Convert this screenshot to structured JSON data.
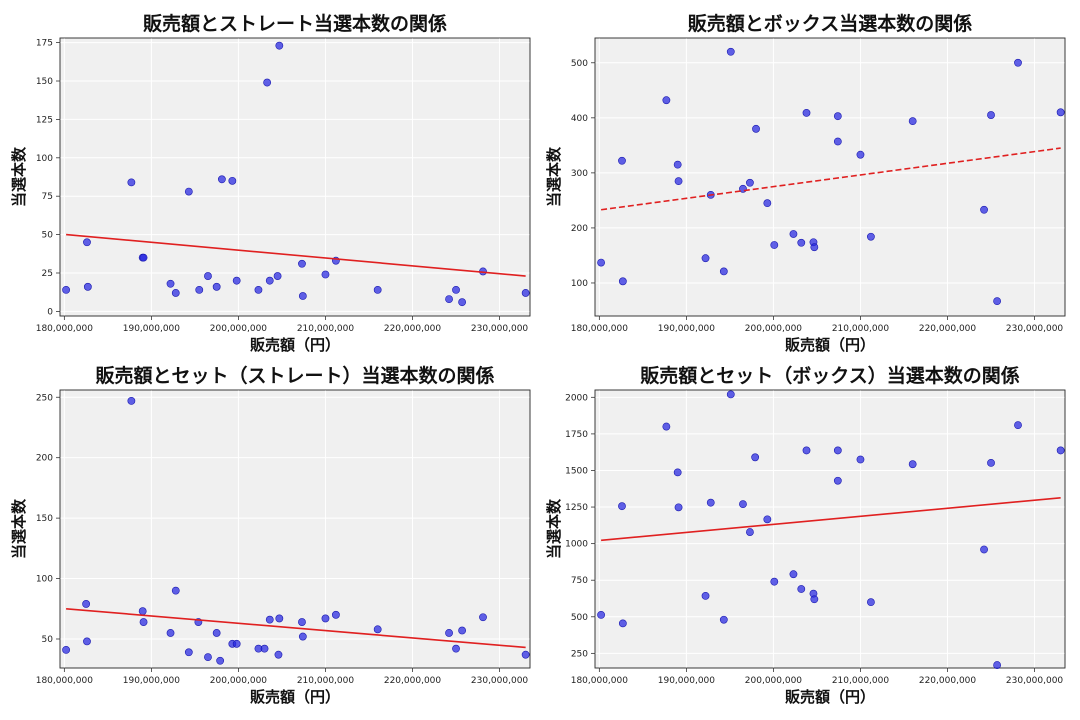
{
  "x_tick_labels": [
    "180,000,000",
    "190,000,000",
    "200,000,000",
    "210,000,000",
    "220,000,000",
    "230,000,000"
  ],
  "chart_data": [
    {
      "type": "scatter",
      "title": "販売額とストレート当選本数の関係",
      "xlabel": "販売額（円）",
      "ylabel": "当選本数",
      "xlim": [
        179500000,
        233500000
      ],
      "ylim": [
        -3,
        178
      ],
      "yticks": [
        0,
        25,
        50,
        75,
        100,
        125,
        150,
        175
      ],
      "ytick_labels": [
        "0",
        "25",
        "50",
        "75",
        "100",
        "125",
        "150",
        "175"
      ],
      "grid": true,
      "trend": {
        "x": [
          180200000,
          233000000
        ],
        "y": [
          50,
          23
        ]
      },
      "points": [
        [
          180200000,
          14
        ],
        [
          182600000,
          45
        ],
        [
          182700000,
          16
        ],
        [
          187700000,
          84
        ],
        [
          189000000,
          35
        ],
        [
          189100000,
          35
        ],
        [
          192200000,
          18
        ],
        [
          192800000,
          12
        ],
        [
          194300000,
          78
        ],
        [
          195500000,
          14
        ],
        [
          196500000,
          23
        ],
        [
          197500000,
          16
        ],
        [
          198100000,
          86
        ],
        [
          199300000,
          85
        ],
        [
          199800000,
          20
        ],
        [
          202300000,
          14
        ],
        [
          203300000,
          149
        ],
        [
          203600000,
          20
        ],
        [
          204500000,
          23
        ],
        [
          204700000,
          173
        ],
        [
          207300000,
          31
        ],
        [
          207400000,
          10
        ],
        [
          210000000,
          24
        ],
        [
          211200000,
          33
        ],
        [
          216000000,
          14
        ],
        [
          224200000,
          8
        ],
        [
          225000000,
          14
        ],
        [
          225700000,
          6
        ],
        [
          228100000,
          26
        ],
        [
          233000000,
          12
        ]
      ]
    },
    {
      "type": "scatter",
      "title": "販売額とボックス当選本数の関係",
      "xlabel": "販売額（円）",
      "ylabel": "当選本数",
      "xlim": [
        179500000,
        233500000
      ],
      "ylim": [
        40,
        545
      ],
      "yticks": [
        100,
        200,
        300,
        400,
        500
      ],
      "ytick_labels": [
        "100",
        "200",
        "300",
        "400",
        "500"
      ],
      "grid": true,
      "trend": {
        "x": [
          180200000,
          233000000
        ],
        "y": [
          233,
          345
        ]
      },
      "points": [
        [
          180200000,
          137
        ],
        [
          182600000,
          322
        ],
        [
          182700000,
          103
        ],
        [
          187700000,
          432
        ],
        [
          189000000,
          315
        ],
        [
          189100000,
          285
        ],
        [
          192200000,
          145
        ],
        [
          192800000,
          260
        ],
        [
          194300000,
          121
        ],
        [
          195100000,
          520
        ],
        [
          196500000,
          271
        ],
        [
          197300000,
          282
        ],
        [
          198000000,
          380
        ],
        [
          199300000,
          245
        ],
        [
          200100000,
          169
        ],
        [
          202300000,
          189
        ],
        [
          203200000,
          173
        ],
        [
          203800000,
          409
        ],
        [
          204600000,
          174
        ],
        [
          204700000,
          165
        ],
        [
          207400000,
          403
        ],
        [
          207400000,
          357
        ],
        [
          210000000,
          333
        ],
        [
          211200000,
          184
        ],
        [
          216000000,
          394
        ],
        [
          224200000,
          233
        ],
        [
          225000000,
          405
        ],
        [
          225700000,
          67
        ],
        [
          228100000,
          500
        ],
        [
          233000000,
          410
        ]
      ]
    },
    {
      "type": "scatter",
      "title": "販売額とセット（ストレート）当選本数の関係",
      "xlabel": "販売額（円）",
      "ylabel": "当選本数",
      "xlim": [
        179500000,
        233500000
      ],
      "ylim": [
        26,
        256
      ],
      "yticks": [
        50,
        100,
        150,
        200,
        250
      ],
      "ytick_labels": [
        "50",
        "100",
        "150",
        "200",
        "250"
      ],
      "grid": true,
      "trend": {
        "x": [
          180200000,
          233000000
        ],
        "y": [
          75,
          43
        ]
      },
      "points": [
        [
          180200000,
          41
        ],
        [
          182500000,
          79
        ],
        [
          182600000,
          48
        ],
        [
          187700000,
          247
        ],
        [
          189000000,
          73
        ],
        [
          189100000,
          64
        ],
        [
          192200000,
          55
        ],
        [
          192800000,
          90
        ],
        [
          194300000,
          39
        ],
        [
          195400000,
          64
        ],
        [
          196500000,
          35
        ],
        [
          197500000,
          55
        ],
        [
          197900000,
          32
        ],
        [
          199300000,
          46
        ],
        [
          199800000,
          46
        ],
        [
          202300000,
          42
        ],
        [
          203000000,
          42
        ],
        [
          203600000,
          66
        ],
        [
          204600000,
          37
        ],
        [
          204700000,
          67
        ],
        [
          207300000,
          64
        ],
        [
          207400000,
          52
        ],
        [
          210000000,
          67
        ],
        [
          211200000,
          70
        ],
        [
          216000000,
          58
        ],
        [
          224200000,
          55
        ],
        [
          225000000,
          42
        ],
        [
          225700000,
          57
        ],
        [
          228100000,
          68
        ],
        [
          233000000,
          37
        ]
      ]
    },
    {
      "type": "scatter",
      "title": "販売額とセット（ボックス）当選本数の関係",
      "xlabel": "販売額（円）",
      "ylabel": "当選本数",
      "xlim": [
        179500000,
        233500000
      ],
      "ylim": [
        150,
        2050
      ],
      "yticks": [
        250,
        500,
        750,
        1000,
        1250,
        1500,
        1750,
        2000
      ],
      "ytick_labels": [
        "250",
        "500",
        "750",
        "1000",
        "1250",
        "1500",
        "1750",
        "2000"
      ],
      "grid": true,
      "trend": {
        "x": [
          180200000,
          233000000
        ],
        "y": [
          1023,
          1313
        ]
      },
      "points": [
        [
          180200000,
          513
        ],
        [
          182600000,
          1256
        ],
        [
          182700000,
          455
        ],
        [
          187700000,
          1800
        ],
        [
          189000000,
          1487
        ],
        [
          189100000,
          1248
        ],
        [
          192200000,
          643
        ],
        [
          192800000,
          1280
        ],
        [
          194300000,
          480
        ],
        [
          195100000,
          2020
        ],
        [
          196500000,
          1270
        ],
        [
          197300000,
          1079
        ],
        [
          197900000,
          1590
        ],
        [
          199300000,
          1166
        ],
        [
          200100000,
          740
        ],
        [
          202300000,
          791
        ],
        [
          203200000,
          690
        ],
        [
          203800000,
          1637
        ],
        [
          204600000,
          658
        ],
        [
          204700000,
          620
        ],
        [
          207400000,
          1637
        ],
        [
          207400000,
          1430
        ],
        [
          210000000,
          1575
        ],
        [
          211200000,
          600
        ],
        [
          216000000,
          1543
        ],
        [
          224200000,
          960
        ],
        [
          225000000,
          1552
        ],
        [
          225700000,
          170
        ],
        [
          228100000,
          1810
        ],
        [
          233000000,
          1637
        ]
      ]
    }
  ]
}
